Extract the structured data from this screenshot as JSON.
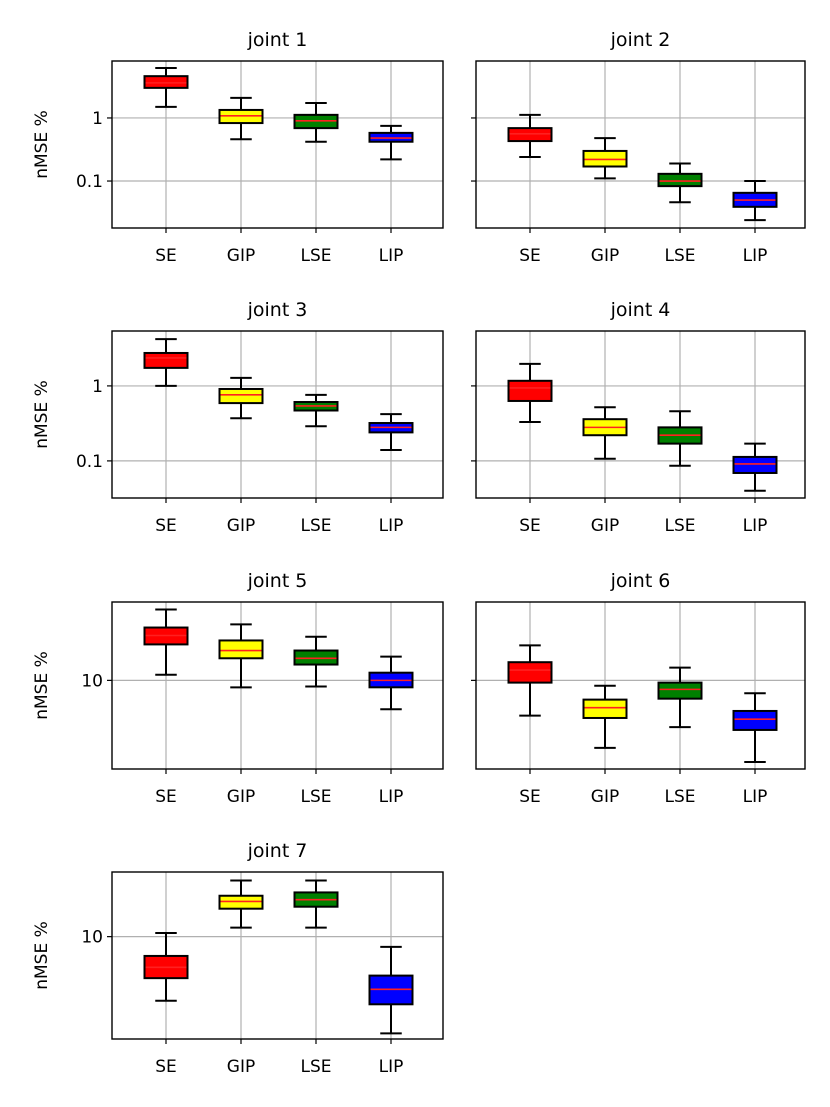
{
  "chart_data": [
    {
      "type": "box",
      "title": "joint 1",
      "ylabel": "nMSE %",
      "yscale": "log",
      "ylim": [
        0.018,
        8.0
      ],
      "yticks": [
        0.1,
        1
      ],
      "ytick_labels": [
        "0.1",
        "1"
      ],
      "show_ytick_labels": true,
      "grid": true,
      "categories": [
        "SE",
        "GIP",
        "LSE",
        "LIP"
      ],
      "boxes": [
        {
          "whislo": 1.5,
          "q1": 3.0,
          "med": 3.6,
          "q3": 4.6,
          "whishi": 6.2
        },
        {
          "whislo": 0.46,
          "q1": 0.83,
          "med": 1.08,
          "q3": 1.34,
          "whishi": 2.08
        },
        {
          "whislo": 0.42,
          "q1": 0.69,
          "med": 0.9,
          "q3": 1.12,
          "whishi": 1.73
        },
        {
          "whislo": 0.22,
          "q1": 0.42,
          "med": 0.48,
          "q3": 0.58,
          "whishi": 0.75
        }
      ]
    },
    {
      "type": "box",
      "title": "joint 2",
      "ylabel": "",
      "yscale": "log",
      "ylim": [
        0.018,
        8.0
      ],
      "yticks": [
        0.1,
        1
      ],
      "ytick_labels": [
        "",
        ""
      ],
      "show_ytick_labels": false,
      "grid": true,
      "categories": [
        "SE",
        "GIP",
        "LSE",
        "LIP"
      ],
      "boxes": [
        {
          "whislo": 0.24,
          "q1": 0.43,
          "med": 0.56,
          "q3": 0.69,
          "whishi": 1.12
        },
        {
          "whislo": 0.11,
          "q1": 0.17,
          "med": 0.22,
          "q3": 0.3,
          "whishi": 0.48
        },
        {
          "whislo": 0.046,
          "q1": 0.083,
          "med": 0.1,
          "q3": 0.13,
          "whishi": 0.19
        },
        {
          "whislo": 0.024,
          "q1": 0.039,
          "med": 0.05,
          "q3": 0.065,
          "whishi": 0.1
        }
      ]
    },
    {
      "type": "box",
      "title": "joint 3",
      "ylabel": "nMSE %",
      "yscale": "log",
      "ylim": [
        0.032,
        5.4
      ],
      "yticks": [
        0.1,
        1
      ],
      "ytick_labels": [
        "0.1",
        "1"
      ],
      "show_ytick_labels": true,
      "grid": true,
      "categories": [
        "SE",
        "GIP",
        "LSE",
        "LIP"
      ],
      "boxes": [
        {
          "whislo": 1.0,
          "q1": 1.74,
          "med": 2.36,
          "q3": 2.75,
          "whishi": 4.2
        },
        {
          "whislo": 0.37,
          "q1": 0.59,
          "med": 0.76,
          "q3": 0.91,
          "whishi": 1.28
        },
        {
          "whislo": 0.29,
          "q1": 0.47,
          "med": 0.54,
          "q3": 0.61,
          "whishi": 0.76
        },
        {
          "whislo": 0.14,
          "q1": 0.24,
          "med": 0.28,
          "q3": 0.32,
          "whishi": 0.42
        }
      ]
    },
    {
      "type": "box",
      "title": "joint 4",
      "ylabel": "",
      "yscale": "log",
      "ylim": [
        0.032,
        5.4
      ],
      "yticks": [
        0.1,
        1
      ],
      "ytick_labels": [
        "",
        ""
      ],
      "show_ytick_labels": false,
      "grid": true,
      "categories": [
        "SE",
        "GIP",
        "LSE",
        "LIP"
      ],
      "boxes": [
        {
          "whislo": 0.33,
          "q1": 0.63,
          "med": 0.94,
          "q3": 1.17,
          "whishi": 1.97
        },
        {
          "whislo": 0.107,
          "q1": 0.22,
          "med": 0.28,
          "q3": 0.36,
          "whishi": 0.52
        },
        {
          "whislo": 0.086,
          "q1": 0.17,
          "med": 0.22,
          "q3": 0.28,
          "whishi": 0.46
        },
        {
          "whislo": 0.04,
          "q1": 0.069,
          "med": 0.091,
          "q3": 0.113,
          "whishi": 0.17
        }
      ]
    },
    {
      "type": "box",
      "title": "joint 5",
      "ylabel": "nMSE %",
      "yscale": "log",
      "ylim": [
        3.0,
        29
      ],
      "yticks": [
        10
      ],
      "ytick_labels": [
        "10"
      ],
      "show_ytick_labels": true,
      "grid": true,
      "categories": [
        "SE",
        "GIP",
        "LSE",
        "LIP"
      ],
      "boxes": [
        {
          "whislo": 10.8,
          "q1": 16.3,
          "med": 18.4,
          "q3": 20.5,
          "whishi": 26.2
        },
        {
          "whislo": 9.1,
          "q1": 13.5,
          "med": 15.0,
          "q3": 17.2,
          "whishi": 21.4
        },
        {
          "whislo": 9.2,
          "q1": 12.4,
          "med": 13.5,
          "q3": 15.0,
          "whishi": 18.1
        },
        {
          "whislo": 6.75,
          "q1": 9.1,
          "med": 10.0,
          "q3": 11.1,
          "whishi": 13.8
        }
      ]
    },
    {
      "type": "box",
      "title": "joint 6",
      "ylabel": "",
      "yscale": "log",
      "ylim": [
        3.0,
        29
      ],
      "yticks": [
        10
      ],
      "ytick_labels": [
        ""
      ],
      "show_ytick_labels": false,
      "grid": true,
      "categories": [
        "SE",
        "GIP",
        "LSE",
        "LIP"
      ],
      "boxes": [
        {
          "whislo": 6.2,
          "q1": 9.7,
          "med": 11.5,
          "q3": 12.8,
          "whishi": 16.1
        },
        {
          "whislo": 4.0,
          "q1": 6.0,
          "med": 6.9,
          "q3": 7.7,
          "whishi": 9.3
        },
        {
          "whislo": 5.3,
          "q1": 7.8,
          "med": 8.85,
          "q3": 9.7,
          "whishi": 11.9
        },
        {
          "whislo": 3.3,
          "q1": 5.1,
          "med": 5.9,
          "q3": 6.6,
          "whishi": 8.4
        }
      ]
    },
    {
      "type": "box",
      "title": "joint 7",
      "ylabel": "nMSE %",
      "yscale": "log",
      "ylim": [
        2.5,
        24
      ],
      "yticks": [
        10
      ],
      "ytick_labels": [
        "10"
      ],
      "show_ytick_labels": true,
      "grid": true,
      "categories": [
        "SE",
        "GIP",
        "LSE",
        "LIP"
      ],
      "boxes": [
        {
          "whislo": 4.2,
          "q1": 5.7,
          "med": 6.6,
          "q3": 7.7,
          "whishi": 10.5
        },
        {
          "whislo": 11.3,
          "q1": 14.6,
          "med": 16.1,
          "q3": 17.4,
          "whishi": 21.4
        },
        {
          "whislo": 11.3,
          "q1": 15.0,
          "med": 16.5,
          "q3": 18.2,
          "whishi": 21.4
        },
        {
          "whislo": 2.7,
          "q1": 4.0,
          "med": 4.9,
          "q3": 5.9,
          "whishi": 8.7
        }
      ]
    }
  ],
  "colors": {
    "SE": "#ff0000",
    "GIP": "#ffff00",
    "LSE": "#008000",
    "LIP": "#0000ff",
    "median": "#ff2020",
    "grid": "#b0b0b0"
  }
}
